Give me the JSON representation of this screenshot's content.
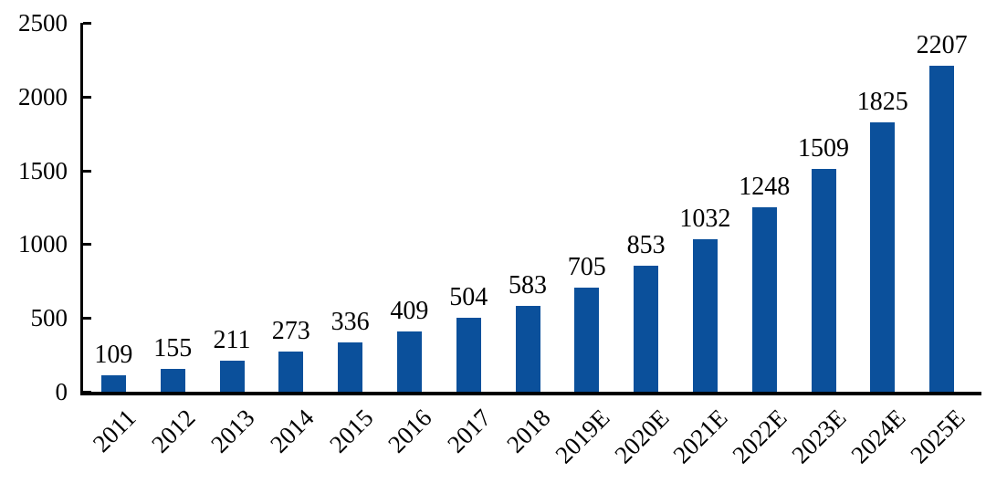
{
  "chart_data": {
    "type": "bar",
    "categories": [
      "2011",
      "2012",
      "2013",
      "2014",
      "2015",
      "2016",
      "2017",
      "2018",
      "2019E",
      "2020E",
      "2021E",
      "2022E",
      "2023E",
      "2024E",
      "2025E"
    ],
    "values": [
      109,
      155,
      211,
      273,
      336,
      409,
      504,
      583,
      705,
      853,
      1032,
      1248,
      1509,
      1825,
      2207
    ],
    "title": "",
    "xlabel": "",
    "ylabel": "",
    "ylim": [
      0,
      2500
    ],
    "yticks": [
      0,
      500,
      1000,
      1500,
      2000,
      2500
    ],
    "data_labels": true,
    "grid": false,
    "legend_position": "none",
    "bar_color": "#0B509B",
    "axis_color": "#000000",
    "label_color": "#000000",
    "background_color": "#FFFFFF"
  }
}
